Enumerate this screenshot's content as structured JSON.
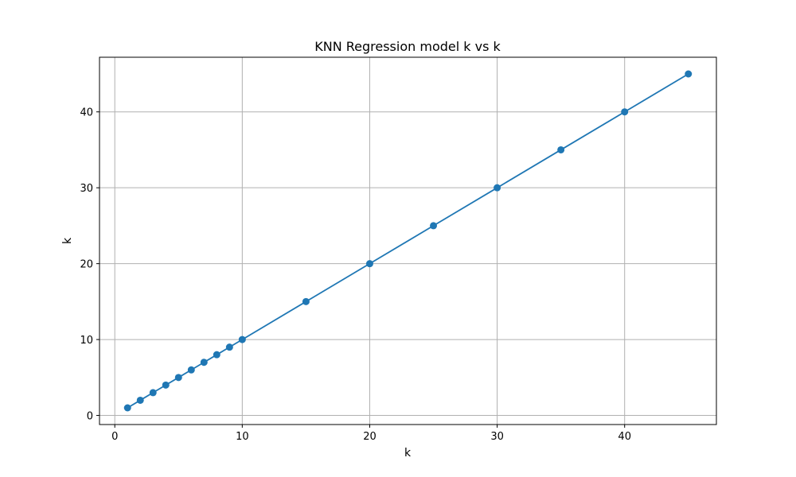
{
  "chart_data": {
    "type": "line",
    "title": "KNN Regression model k vs k",
    "xlabel": "k",
    "ylabel": "k",
    "xlim": [
      -1.2,
      47.2
    ],
    "ylim": [
      -1.2,
      47.2
    ],
    "xticks": [
      0,
      10,
      20,
      30,
      40
    ],
    "yticks": [
      0,
      10,
      20,
      30,
      40
    ],
    "grid": true,
    "series": [
      {
        "color": "#1f77b4",
        "marker": "circle",
        "x": [
          1,
          2,
          3,
          4,
          5,
          6,
          7,
          8,
          9,
          10,
          15,
          20,
          25,
          30,
          35,
          40,
          45
        ],
        "y": [
          1,
          2,
          3,
          4,
          5,
          6,
          7,
          8,
          9,
          10,
          15,
          20,
          25,
          30,
          35,
          40,
          45
        ]
      }
    ]
  }
}
